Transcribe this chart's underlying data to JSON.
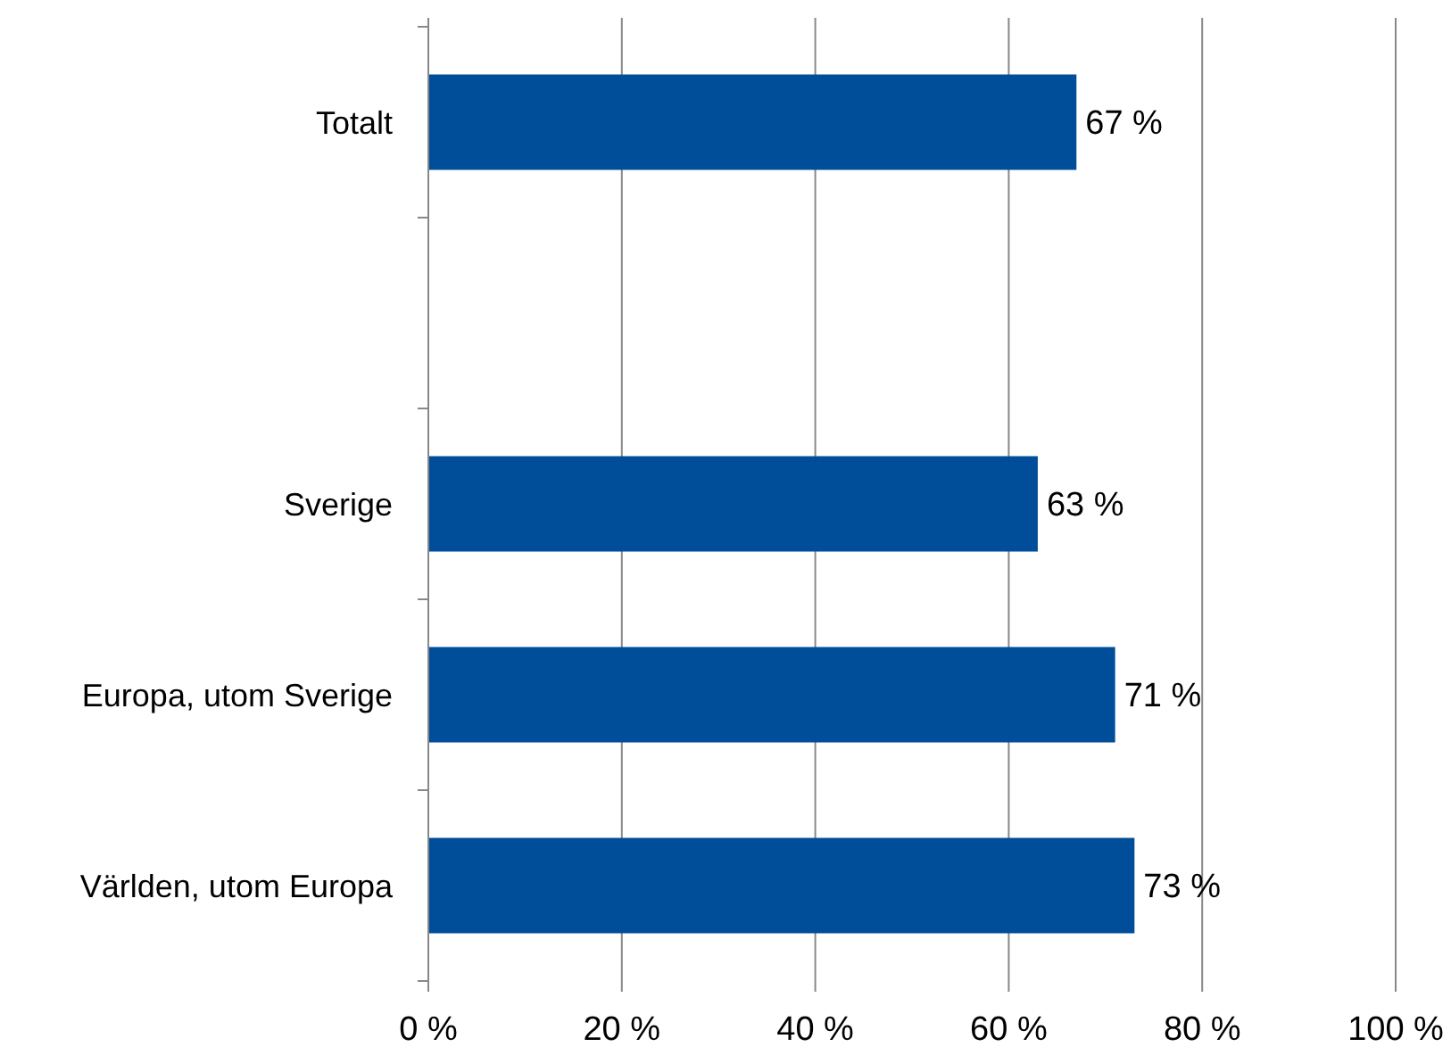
{
  "chart_data": {
    "type": "bar",
    "orientation": "horizontal",
    "categories": [
      "Totalt",
      null,
      "Sverige",
      "Europa, utom Sverige",
      "Världen, utom Europa"
    ],
    "values": [
      67,
      null,
      63,
      71,
      73
    ],
    "value_labels": [
      "67 %",
      null,
      "63 %",
      "71 %",
      "73 %"
    ],
    "color": "#004e9a",
    "xlim": [
      0,
      100
    ],
    "xticks": [
      {
        "value": 0,
        "label": "0 %"
      },
      {
        "value": 20,
        "label": "20 %"
      },
      {
        "value": 40,
        "label": "40 %"
      },
      {
        "value": 60,
        "label": "60 %"
      },
      {
        "value": 80,
        "label": "80 %"
      },
      {
        "value": 100,
        "label": "100 %"
      }
    ],
    "grid": "x"
  }
}
